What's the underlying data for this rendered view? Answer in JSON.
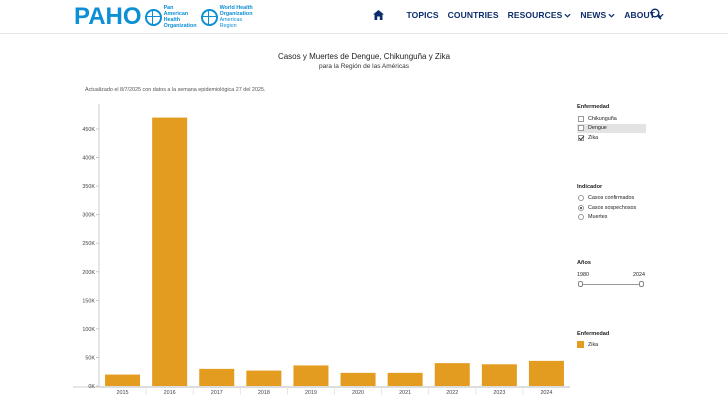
{
  "header": {
    "logo": {
      "wordmark": "PAHO",
      "paho_org": [
        "Pan American",
        "Health",
        "Organization"
      ],
      "who_org": [
        "World Health",
        "Organization"
      ],
      "who_region": "Americas Region"
    },
    "nav": [
      {
        "label": "TOPICS",
        "dropdown": false
      },
      {
        "label": "COUNTRIES",
        "dropdown": false
      },
      {
        "label": "RESOURCES",
        "dropdown": true
      },
      {
        "label": "NEWS",
        "dropdown": true
      },
      {
        "label": "ABOUT",
        "dropdown": true
      }
    ],
    "icons": {
      "home": "home-icon",
      "search": "search-icon"
    },
    "nav_color": "#0c2d6b",
    "brand_color": "#0d8fd6"
  },
  "title": "Casos y Muertes de Dengue, Chikunguña y Zika",
  "subtitle": "para la Región de las Américas",
  "updated": "Actualizado el 8/7/2025 con datos a la semana epidemiológica 27 del 2025.",
  "filters": {
    "disease": {
      "title": "Enfermedad",
      "options": [
        {
          "label": "Chikunguña",
          "checked": false,
          "highlighted": false
        },
        {
          "label": "Dengue",
          "checked": false,
          "highlighted": true
        },
        {
          "label": "Zika",
          "checked": true,
          "highlighted": false
        }
      ]
    },
    "indicator": {
      "title": "Indicador",
      "options": [
        {
          "label": "Casos confirmados",
          "selected": false
        },
        {
          "label": "Casos sospechosos",
          "selected": true
        },
        {
          "label": "Muertes",
          "selected": false
        }
      ]
    },
    "years": {
      "title": "Años",
      "min": "1980",
      "max": "2024",
      "range": [
        1980,
        2024
      ]
    },
    "legend": {
      "title": "Enfermedad",
      "items": [
        {
          "label": "Zika",
          "color": "#e39b20"
        }
      ]
    }
  },
  "chart_data": {
    "type": "bar",
    "categories": [
      "2015",
      "2016",
      "2017",
      "2018",
      "2019",
      "2020",
      "2021",
      "2022",
      "2023",
      "2024"
    ],
    "series": [
      {
        "name": "Zika",
        "values": [
          20000,
          470000,
          30000,
          27000,
          36000,
          23000,
          23000,
          40000,
          38000,
          44000
        ]
      }
    ],
    "ytick_labels": [
      "0K",
      "50K",
      "100K",
      "150K",
      "200K",
      "250K",
      "300K",
      "350K",
      "400K",
      "450K"
    ],
    "ylim": [
      0,
      480000
    ],
    "bar_color": "#e39b20",
    "grid": false
  }
}
